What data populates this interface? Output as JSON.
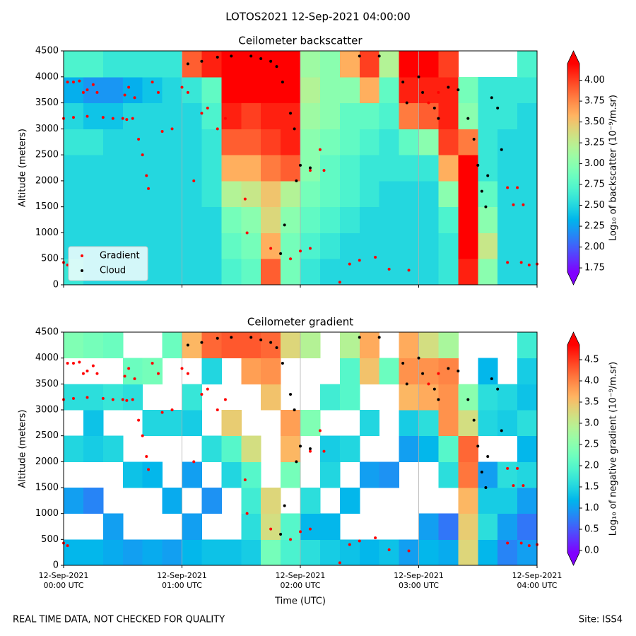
{
  "suptitle": "LOTOS2021 12-Sep-2021 04:00:00",
  "footer": {
    "left": "REAL TIME DATA, NOT CHECKED FOR QUALITY",
    "right": "Site: ISS4"
  },
  "chart_data": [
    {
      "type": "heatmap",
      "title": "Ceilometer backscatter",
      "ylabel": "Altitude (meters)",
      "xlim": [
        0,
        240
      ],
      "ylim": [
        0,
        4500
      ],
      "xticks": [
        0,
        60,
        120,
        180,
        240
      ],
      "show_xtick_labels": false,
      "yticks": [
        0,
        500,
        1000,
        1500,
        2000,
        2500,
        3000,
        3500,
        4000,
        4500
      ],
      "grid": "x",
      "legend": "lower left",
      "x_bins": [
        0,
        10,
        20,
        30,
        40,
        50,
        60,
        70,
        80,
        90,
        100,
        110,
        120,
        130,
        140,
        150,
        160,
        170,
        180,
        190,
        200,
        210,
        220,
        230,
        240
      ],
      "y_bins": [
        0,
        500,
        1000,
        1500,
        2000,
        2500,
        3000,
        3500,
        4000,
        4500
      ],
      "z": [
        [
          2.6,
          2.5,
          2.5,
          2.5,
          2.5,
          2.6,
          2.5,
          2.3,
          2.7
        ],
        [
          2.5,
          2.5,
          2.5,
          2.5,
          2.5,
          2.6,
          2.4,
          2.2,
          2.7
        ],
        [
          2.5,
          2.5,
          2.5,
          2.5,
          2.5,
          2.5,
          2.4,
          2.2,
          2.6
        ],
        [
          2.5,
          2.5,
          2.5,
          2.5,
          2.5,
          2.5,
          2.5,
          2.3,
          2.6
        ],
        [
          2.5,
          2.5,
          2.5,
          2.5,
          2.5,
          2.5,
          2.5,
          2.4,
          2.6
        ],
        [
          2.5,
          2.5,
          2.5,
          2.5,
          2.5,
          2.5,
          2.5,
          2.5,
          2.6
        ],
        [
          2.5,
          2.5,
          2.5,
          2.5,
          2.5,
          2.5,
          2.5,
          2.6,
          3.9
        ],
        [
          2.5,
          2.5,
          2.5,
          2.6,
          2.6,
          2.6,
          2.7,
          2.8,
          4.1
        ],
        [
          2.7,
          2.8,
          2.9,
          3.2,
          3.6,
          3.9,
          4.1,
          4.2,
          4.3
        ],
        [
          2.8,
          2.9,
          3.0,
          3.3,
          3.6,
          3.9,
          4.0,
          4.2,
          4.3
        ],
        [
          3.9,
          3.6,
          3.4,
          3.5,
          3.8,
          4.0,
          4.1,
          4.2,
          4.3
        ],
        [
          2.9,
          2.9,
          3.0,
          3.2,
          3.9,
          4.1,
          4.1,
          4.2,
          4.3
        ],
        [
          2.6,
          2.7,
          2.8,
          2.9,
          3.0,
          3.0,
          3.1,
          3.2,
          3.1
        ],
        [
          2.5,
          2.6,
          2.7,
          2.8,
          2.8,
          2.9,
          3.0,
          3.0,
          3.0
        ],
        [
          2.5,
          2.5,
          2.6,
          2.7,
          2.7,
          2.8,
          2.8,
          3.0,
          3.6
        ],
        [
          2.5,
          2.5,
          2.5,
          2.6,
          2.6,
          2.7,
          2.8,
          3.6,
          4.0
        ],
        [
          2.5,
          2.5,
          2.5,
          2.5,
          2.6,
          2.6,
          2.7,
          2.8,
          3.2
        ],
        [
          2.5,
          2.5,
          2.5,
          2.5,
          2.6,
          2.8,
          3.8,
          4.1,
          4.2
        ],
        [
          2.5,
          2.5,
          2.5,
          2.5,
          2.6,
          3.0,
          3.9,
          4.1,
          4.2
        ],
        [
          2.6,
          2.6,
          2.7,
          3.0,
          3.6,
          4.0,
          4.1,
          4.1,
          4.0
        ],
        [
          4.1,
          4.2,
          4.2,
          4.2,
          4.2,
          3.8,
          3.0,
          2.9,
          null
        ],
        [
          3.0,
          3.3,
          3.0,
          2.8,
          2.6,
          2.6,
          2.6,
          2.6,
          null
        ],
        [
          2.5,
          2.5,
          2.5,
          2.5,
          2.5,
          2.5,
          2.6,
          2.6,
          null
        ],
        [
          2.5,
          2.5,
          2.5,
          2.5,
          2.5,
          2.5,
          2.5,
          2.6,
          2.7
        ]
      ],
      "colorbar": {
        "label": "Log₁₀ of backscatter (10⁻⁹/m.sr)",
        "clim": [
          1.7,
          4.2
        ],
        "extend": "both",
        "ticks": [
          {
            "value": 1.75,
            "label": "1.75"
          },
          {
            "value": 2.0,
            "label": "2.00"
          },
          {
            "value": 2.25,
            "label": "2.25"
          },
          {
            "value": 2.5,
            "label": "2.50"
          },
          {
            "value": 2.75,
            "label": "2.75"
          },
          {
            "value": 3.0,
            "label": "3.00"
          },
          {
            "value": 3.25,
            "label": "3.25"
          },
          {
            "value": 3.5,
            "label": "3.50"
          },
          {
            "value": 3.75,
            "label": "3.75"
          },
          {
            "value": 4.0,
            "label": "4.00"
          }
        ]
      },
      "series": [
        {
          "name": "Gradient",
          "color": "#ff0000",
          "x": [
            0,
            2,
            2,
            5,
            8,
            10,
            12,
            15,
            17,
            0,
            5,
            12,
            20,
            25,
            30,
            32,
            35,
            31,
            33,
            36,
            38,
            40,
            42,
            43,
            45,
            48,
            50,
            55,
            60,
            63,
            66,
            70,
            73,
            78,
            82,
            92,
            93,
            105,
            115,
            120,
            125,
            125,
            130,
            132,
            140,
            145,
            150,
            158,
            165,
            175,
            225,
            230,
            228,
            233,
            225,
            232,
            240,
            236,
            190,
            185
          ],
          "y": [
            430,
            380,
            3900,
            3900,
            3920,
            3700,
            3750,
            3850,
            3700,
            3200,
            3220,
            3240,
            3220,
            3200,
            3200,
            3180,
            3200,
            3650,
            3800,
            3600,
            2800,
            2500,
            2100,
            1850,
            3900,
            3700,
            2950,
            3000,
            3800,
            3700,
            2000,
            3300,
            3400,
            3000,
            3200,
            1650,
            1000,
            700,
            500,
            650,
            700,
            2200,
            2600,
            2200,
            50,
            400,
            470,
            530,
            300,
            280,
            1870,
            1870,
            1540,
            1540,
            430,
            430,
            400,
            380,
            3700,
            3500
          ]
        },
        {
          "name": "Cloud",
          "color": "#000000",
          "x": [
            63,
            70,
            78,
            85,
            95,
            100,
            105,
            108,
            111,
            115,
            117,
            120,
            118,
            112,
            110,
            125,
            150,
            160,
            172,
            174,
            180,
            182,
            188,
            190,
            195,
            200,
            205,
            208,
            210,
            212,
            214,
            215,
            217,
            220,
            222
          ],
          "y": [
            4250,
            4300,
            4380,
            4400,
            4400,
            4350,
            4300,
            4200,
            3900,
            3300,
            3000,
            2300,
            2000,
            1150,
            600,
            2250,
            4400,
            4400,
            3900,
            3500,
            4000,
            3700,
            3400,
            3200,
            3800,
            3750,
            3200,
            2800,
            2300,
            1800,
            1500,
            2100,
            3600,
            3400,
            2600
          ]
        }
      ]
    },
    {
      "type": "heatmap",
      "title": "Ceilometer gradient",
      "ylabel": "Altitude (meters)",
      "xlabel": "Time (UTC)",
      "xlim": [
        0,
        240
      ],
      "xticks": [
        {
          "value": 0,
          "label": "12-Sep-2021\n00:00 UTC"
        },
        {
          "value": 60,
          "label": "12-Sep-2021\n01:00 UTC"
        },
        {
          "value": 120,
          "label": "12-Sep-2021\n02:00 UTC"
        },
        {
          "value": 180,
          "label": "12-Sep-2021\n03:00 UTC"
        },
        {
          "value": 240,
          "label": "12-Sep-2021\n04:00 UTC"
        }
      ],
      "ylim": [
        0,
        4500
      ],
      "yticks": [
        0,
        500,
        1000,
        1500,
        2000,
        2500,
        3000,
        3500,
        4000,
        4500
      ],
      "grid": "x",
      "x_bins": [
        0,
        10,
        20,
        30,
        40,
        50,
        60,
        70,
        80,
        90,
        100,
        110,
        120,
        130,
        140,
        150,
        160,
        170,
        180,
        190,
        200,
        210,
        220,
        230,
        240
      ],
      "y_bins": [
        0,
        500,
        1000,
        1500,
        2000,
        2500,
        3000,
        3500,
        4000,
        4500
      ],
      "z": [
        [
          1.2,
          null,
          1.0,
          null,
          1.5,
          null,
          1.6,
          null,
          2.4
        ],
        [
          1.2,
          null,
          0.8,
          null,
          1.4,
          1.3,
          1.6,
          null,
          2.3
        ],
        [
          1.1,
          1.0,
          null,
          null,
          1.5,
          null,
          1.7,
          null,
          2.2
        ],
        [
          1.0,
          null,
          null,
          1.3,
          null,
          null,
          1.6,
          2.2,
          null
        ],
        [
          1.1,
          null,
          null,
          1.2,
          null,
          1.5,
          null,
          2.3,
          null
        ],
        [
          1.0,
          null,
          1.1,
          null,
          null,
          1.5,
          null,
          null,
          2.2
        ],
        [
          1.2,
          1.0,
          null,
          1.0,
          null,
          1.4,
          1.7,
          null,
          3.6
        ],
        [
          1.3,
          null,
          0.9,
          null,
          1.6,
          null,
          null,
          1.5,
          4.2
        ],
        [
          1.3,
          null,
          null,
          1.5,
          2.0,
          3.4,
          null,
          null,
          4.3
        ],
        [
          1.4,
          1.6,
          1.8,
          2.0,
          3.2,
          null,
          null,
          3.8,
          4.3
        ],
        [
          2.3,
          3.2,
          3.3,
          null,
          null,
          null,
          3.5,
          3.9,
          4.2
        ],
        [
          1.9,
          2.0,
          null,
          2.3,
          3.6,
          3.8,
          null,
          null,
          3.3
        ],
        [
          1.6,
          1.2,
          1.6,
          null,
          null,
          2.4,
          null,
          null,
          2.9
        ],
        [
          1.4,
          1.2,
          null,
          1.5,
          1.4,
          null,
          1.8,
          null,
          null
        ],
        [
          1.3,
          null,
          1.2,
          null,
          1.5,
          null,
          2.0,
          2.0,
          2.9
        ],
        [
          1.2,
          null,
          null,
          1.0,
          null,
          1.5,
          null,
          3.5,
          3.7
        ],
        [
          1.3,
          null,
          null,
          0.9,
          null,
          null,
          null,
          2.2,
          null
        ],
        [
          1.0,
          null,
          null,
          null,
          1.0,
          1.4,
          3.6,
          3.9,
          3.7
        ],
        [
          1.2,
          1.0,
          null,
          null,
          1.2,
          1.6,
          3.7,
          3.9,
          3.2
        ],
        [
          1.1,
          0.7,
          null,
          1.6,
          2.0,
          3.9,
          3.9,
          4.0,
          2.8
        ],
        [
          3.3,
          3.4,
          3.6,
          4.1,
          4.2,
          3.2,
          2.5,
          null,
          null
        ],
        [
          1.2,
          1.6,
          1.4,
          1.0,
          null,
          1.5,
          1.6,
          1.2,
          null
        ],
        [
          0.8,
          1.0,
          1.4,
          1.6,
          null,
          1.4,
          1.5,
          null,
          null
        ],
        [
          1.0,
          0.7,
          1.0,
          1.5,
          1.2,
          1.6,
          1.3,
          1.4,
          1.8
        ]
      ],
      "colorbar": {
        "label": "Log₁₀ of negative gradient (10⁻⁹/m.sr)",
        "clim": [
          -0.05,
          4.85
        ],
        "extend": "both",
        "ticks": [
          {
            "value": 0,
            "label": "0.0"
          },
          {
            "value": 0.5,
            "label": "0.5"
          },
          {
            "value": 1,
            "label": "1.0"
          },
          {
            "value": 1.5,
            "label": "1.5"
          },
          {
            "value": 2,
            "label": "2.0"
          },
          {
            "value": 2.5,
            "label": "2.5"
          },
          {
            "value": 3,
            "label": "3.0"
          },
          {
            "value": 3.5,
            "label": "3.5"
          },
          {
            "value": 4,
            "label": "4.0"
          },
          4.5
        ]
      },
      "series": [
        {
          "color": "#ff0000",
          "x": [
            0,
            2,
            2,
            5,
            8,
            10,
            12,
            15,
            17,
            0,
            5,
            12,
            20,
            25,
            30,
            32,
            35,
            31,
            33,
            36,
            38,
            40,
            42,
            43,
            45,
            48,
            50,
            55,
            60,
            63,
            66,
            70,
            73,
            78,
            82,
            92,
            93,
            105,
            115,
            120,
            125,
            125,
            130,
            132,
            140,
            145,
            150,
            158,
            165,
            175,
            225,
            230,
            228,
            233,
            225,
            232,
            240,
            236,
            190,
            185
          ],
          "y": [
            430,
            380,
            3900,
            3900,
            3920,
            3700,
            3750,
            3850,
            3700,
            3200,
            3220,
            3240,
            3220,
            3200,
            3200,
            3180,
            3200,
            3650,
            3800,
            3600,
            2800,
            2500,
            2100,
            1850,
            3900,
            3700,
            2950,
            3000,
            3800,
            3700,
            2000,
            3300,
            3400,
            3000,
            3200,
            1650,
            1000,
            700,
            500,
            650,
            700,
            2200,
            2600,
            2200,
            50,
            400,
            470,
            530,
            300,
            280,
            1870,
            1870,
            1540,
            1540,
            430,
            430,
            400,
            380,
            3700,
            3500
          ]
        },
        {
          "color": "#000000",
          "x": [
            63,
            70,
            78,
            85,
            95,
            100,
            105,
            108,
            111,
            115,
            117,
            120,
            118,
            112,
            110,
            125,
            150,
            160,
            172,
            174,
            180,
            182,
            188,
            190,
            195,
            200,
            205,
            208,
            210,
            212,
            214,
            215,
            217,
            220,
            222
          ],
          "y": [
            4250,
            4300,
            4380,
            4400,
            4400,
            4350,
            4300,
            4200,
            3900,
            3300,
            3000,
            2300,
            2000,
            1150,
            600,
            2250,
            4400,
            4400,
            3900,
            3500,
            4000,
            3700,
            3400,
            3200,
            3800,
            3750,
            3200,
            2800,
            2300,
            1800,
            1500,
            2100,
            3600,
            3400,
            2600
          ]
        }
      ]
    }
  ]
}
